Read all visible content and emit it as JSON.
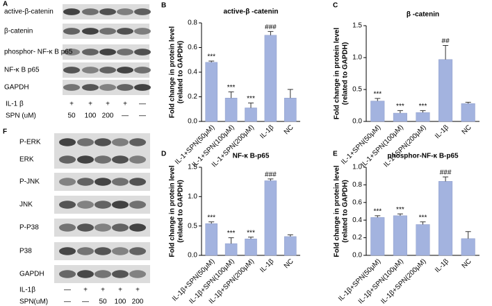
{
  "blots": [
    {
      "panel": "A",
      "rows": [
        "active-β-catenin",
        "β-catenin",
        "phosphor- NF-κ B p65",
        "NF-κ B p65",
        "GAPDH"
      ],
      "treatments": [
        {
          "label": "IL-1 β",
          "lanes": [
            "+",
            "+",
            "+",
            "+",
            "—"
          ]
        },
        {
          "label": "SPN (uM)",
          "lanes": [
            "50",
            "100",
            "200",
            "—",
            "—"
          ]
        }
      ]
    },
    {
      "panel": "F",
      "rows": [
        "P-ERK",
        "ERK",
        "P-JNK",
        "JNK",
        "P-P38",
        "P38",
        "GAPDH"
      ],
      "treatments": [
        {
          "label": "IL-1β",
          "lanes": [
            "—",
            "+",
            "+",
            "+",
            "+"
          ]
        },
        {
          "label": "SPN(uM)",
          "lanes": [
            "—",
            "—",
            "50",
            "100",
            "200"
          ]
        }
      ]
    }
  ],
  "chart_data": [
    {
      "type": "bar",
      "panel": "B",
      "title": "active-β -catenin",
      "ylabel": [
        "Fold change in protein level",
        "(related to GAPDH)"
      ],
      "categories": [
        "IL-1+SPN(50μM)",
        "IL-1+SPN(100μM)",
        "IL-1+SPN(200μM)",
        "IL-1β",
        "NC"
      ],
      "values": [
        0.48,
        0.19,
        0.11,
        0.7,
        0.19
      ],
      "errors": [
        0.01,
        0.05,
        0.04,
        0.03,
        0.07
      ],
      "annotations": [
        "***",
        "***",
        "***",
        "###",
        null
      ],
      "color": "#a3b3df",
      "ylim": [
        0,
        0.8
      ],
      "yticks": [
        {
          "value": 0,
          "label": "0.0"
        },
        0.2,
        0.4,
        0.6,
        0.8
      ]
    },
    {
      "type": "bar",
      "panel": "C",
      "title": "β -catenin",
      "ylabel": [
        "Fold change in protein level",
        "(related to GAPDH)"
      ],
      "categories": [
        "IL-1+SPN(50μM)",
        "IL-1+SPN(100μM)",
        "IL-1+SPN(200μM)",
        "IL-1β",
        "NC"
      ],
      "values": [
        0.32,
        0.13,
        0.14,
        0.97,
        0.28
      ],
      "errors": [
        0.04,
        0.04,
        0.03,
        0.22,
        0.02
      ],
      "annotations": [
        "***",
        "***",
        "***",
        "##",
        null
      ],
      "color": "#a3b3df",
      "ylim": [
        0,
        1.5
      ],
      "yticks": [
        {
          "value": 0,
          "label": "0.0"
        },
        0.5,
        {
          "value": 1,
          "label": "1.0"
        },
        1.5
      ]
    },
    {
      "type": "bar",
      "panel": "D",
      "title": "NF-κ B-p65",
      "ylabel": [
        "Fold change in protein level",
        "(related to GAPDH)"
      ],
      "categories": [
        "IL-1β+SPN(50μM)",
        "IL-1β+SPN(100μM)",
        "IL-1β+SPN(200μM)",
        "IL-1β",
        "NC"
      ],
      "values": [
        0.54,
        0.2,
        0.28,
        1.27,
        0.32
      ],
      "errors": [
        0.03,
        0.1,
        0.03,
        0.03,
        0.03
      ],
      "annotations": [
        "***",
        "***",
        "***",
        "###",
        null
      ],
      "color": "#a3b3df",
      "ylim": [
        0,
        1.5
      ],
      "yticks": [
        {
          "value": 0,
          "label": "0.0"
        },
        0.5,
        {
          "value": 1,
          "label": "1.0"
        },
        1.5
      ]
    },
    {
      "type": "bar",
      "panel": "E",
      "title": "phosphor-NF-κ B-p65",
      "ylabel": [
        "Fold change in protein level",
        "(related to GAPDH)"
      ],
      "categories": [
        "IL-1β+SPN(50μM)",
        "IL-1β+SPN(100μM)",
        "IL-1β+SPN(200μM)",
        "IL-1β",
        "NC"
      ],
      "values": [
        0.43,
        0.45,
        0.35,
        0.84,
        0.19
      ],
      "errors": [
        0.02,
        0.02,
        0.03,
        0.05,
        0.08
      ],
      "annotations": [
        "***",
        "***",
        "***",
        "###",
        null
      ],
      "color": "#a3b3df",
      "ylim": [
        0,
        1.0
      ],
      "yticks": [
        {
          "value": 0,
          "label": "0.0"
        },
        0.2,
        0.4,
        0.6,
        0.8,
        {
          "value": 1,
          "label": "1.0"
        }
      ]
    }
  ]
}
